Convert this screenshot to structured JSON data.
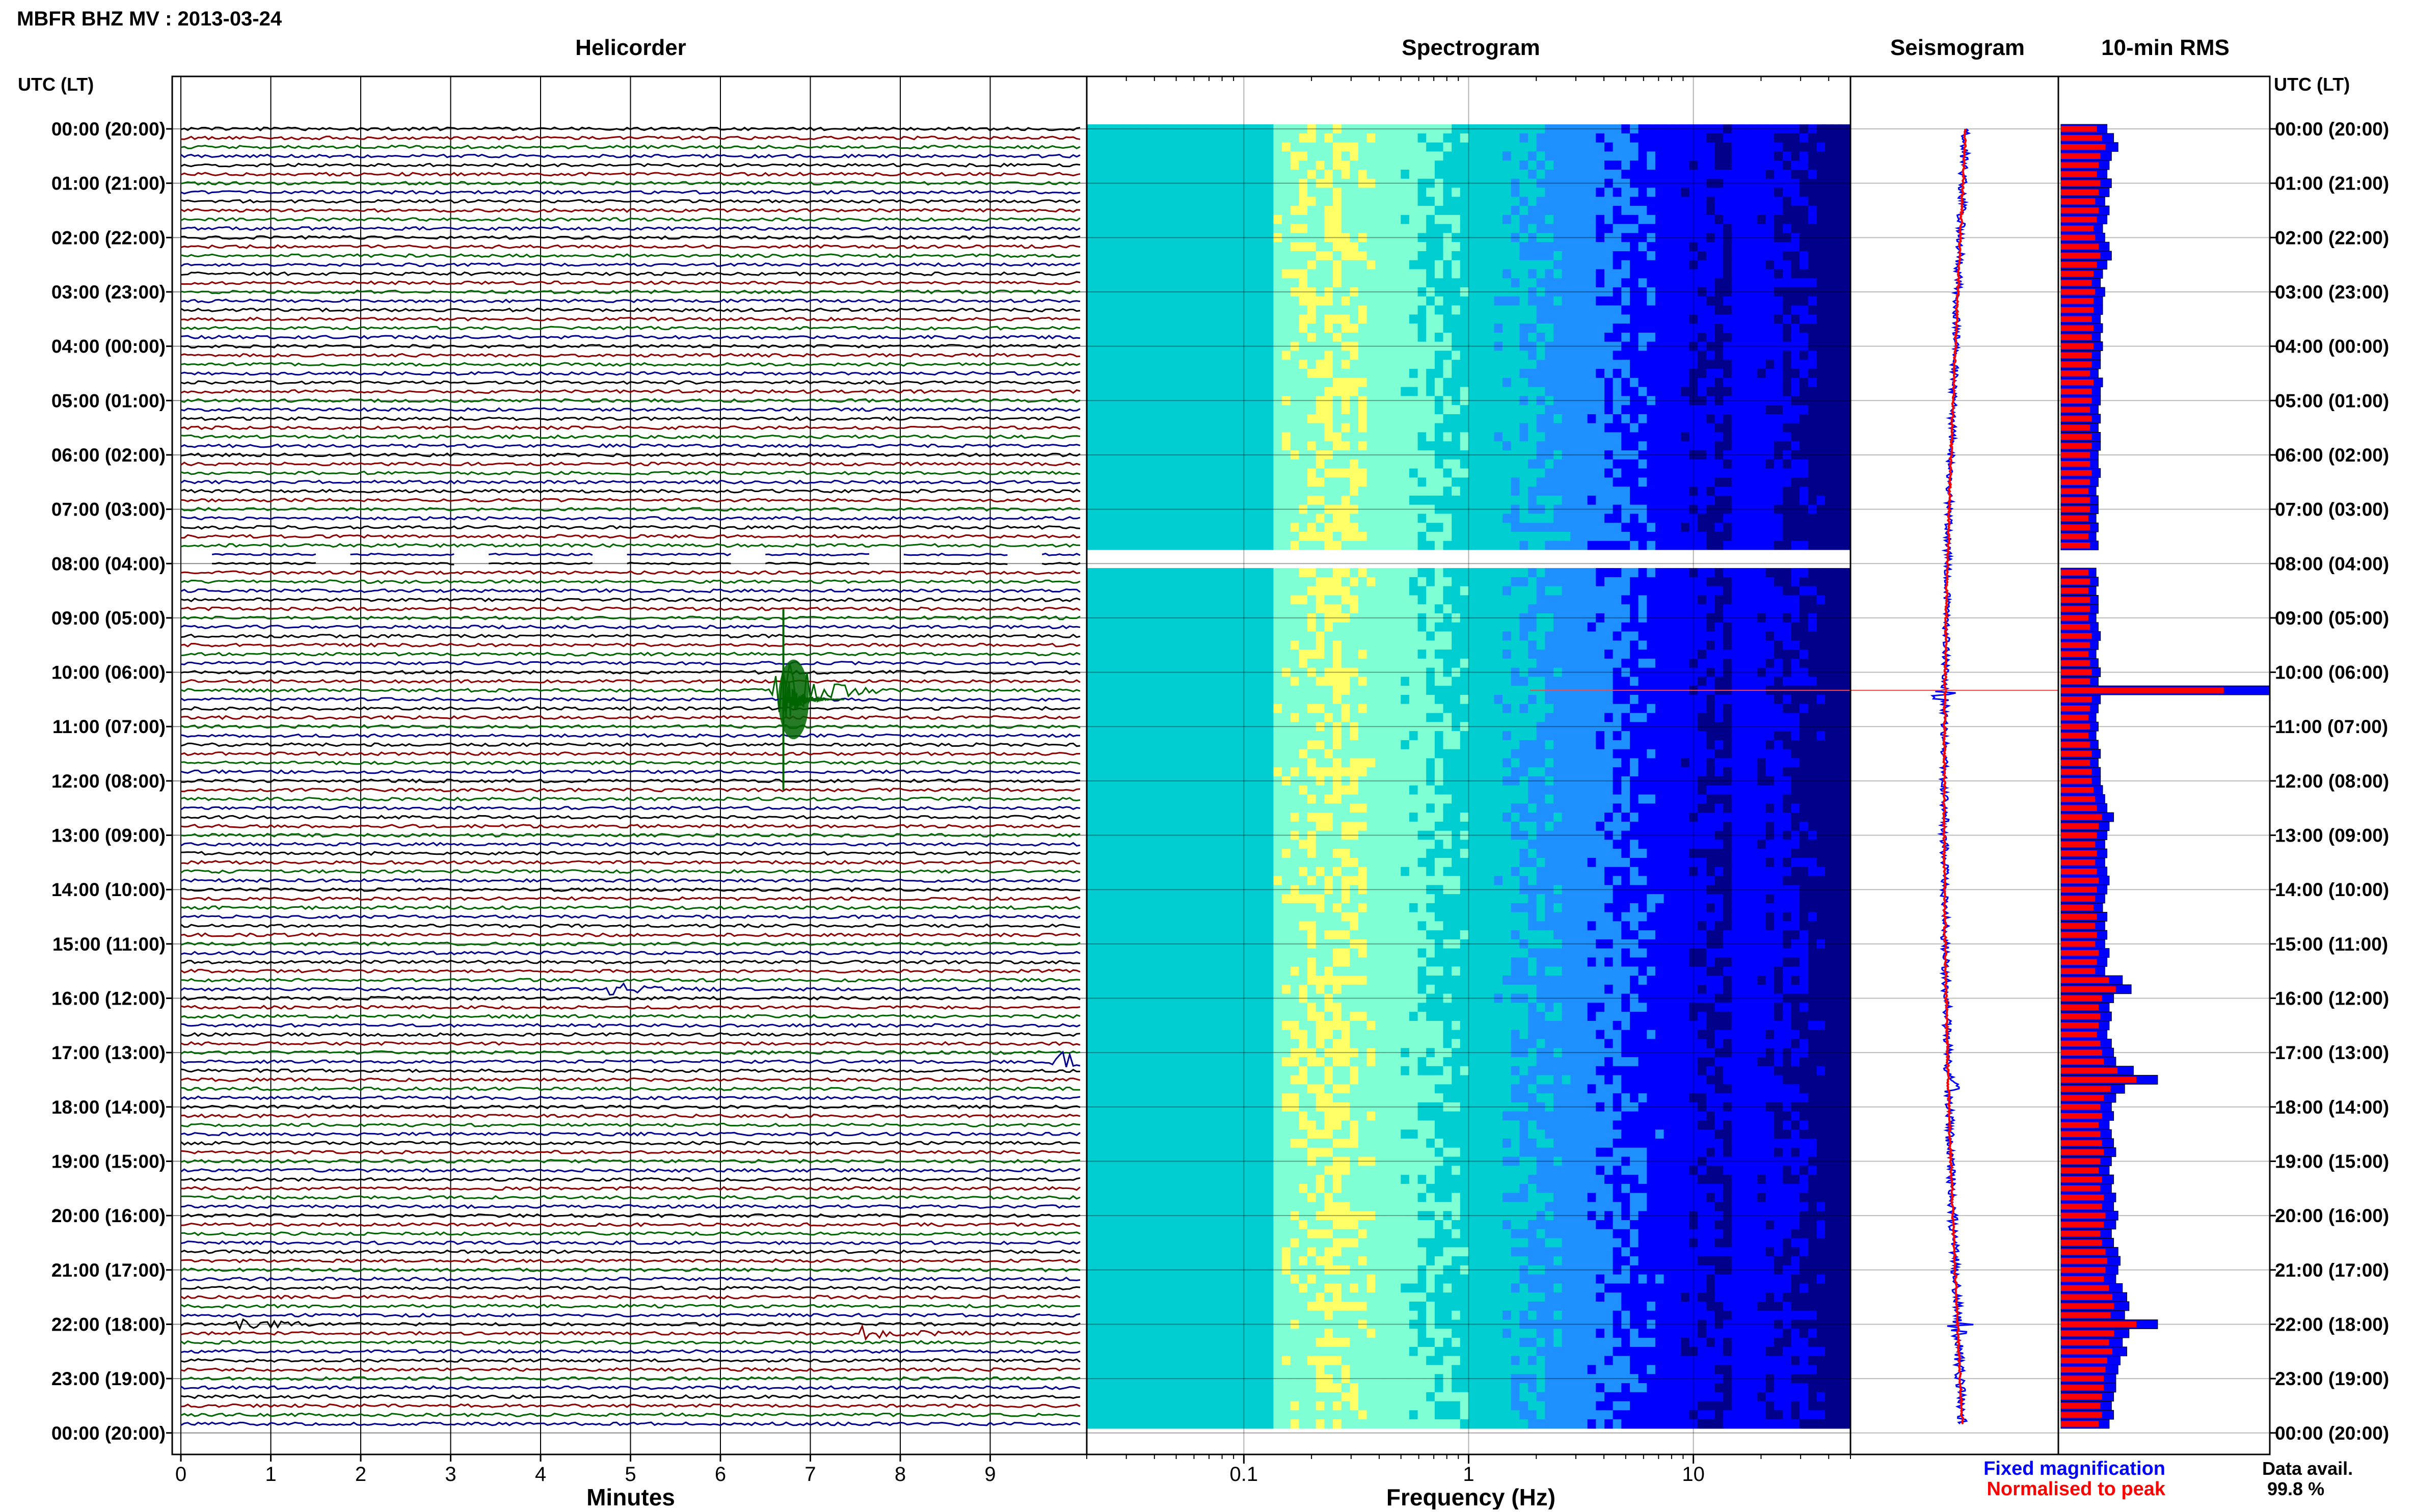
{
  "header": {
    "station_title": "MBFR BHZ MV : 2013-03-24",
    "axis_corner_left": "UTC (LT)",
    "axis_corner_right": "UTC (LT)"
  },
  "panels": {
    "helicorder": "Helicorder",
    "spectrogram": "Spectrogram",
    "seismogram": "Seismogram",
    "rms": "10-min RMS"
  },
  "footer": {
    "minutes_label": "Minutes",
    "frequency_label": "Frequency (Hz)",
    "legend_fixed": "Fixed magnification",
    "legend_normalised": "Normalised to peak",
    "data_avail_label": "Data avail.",
    "data_avail_value": "99.8 %"
  },
  "colors": {
    "trace_cycle": [
      "#000000",
      "#8b0000",
      "#006400",
      "#00008b"
    ],
    "fixed": "#0000ff",
    "normalised": "#ff0000"
  },
  "chart_data": [
    {
      "type": "line",
      "name": "helicorder",
      "x_ticks": [
        "0",
        "1",
        "2",
        "3",
        "4",
        "5",
        "6",
        "7",
        "8",
        "9"
      ],
      "xlim": [
        0,
        10
      ],
      "time_labels": [
        "00:00 (20:00)",
        "01:00 (21:00)",
        "02:00 (22:00)",
        "03:00 (23:00)",
        "04:00 (00:00)",
        "05:00 (01:00)",
        "06:00 (02:00)",
        "07:00 (03:00)",
        "08:00 (04:00)",
        "09:00 (05:00)",
        "10:00 (06:00)",
        "11:00 (07:00)",
        "12:00 (08:00)",
        "13:00 (09:00)",
        "14:00 (10:00)",
        "15:00 (11:00)",
        "16:00 (12:00)",
        "17:00 (13:00)",
        "18:00 (14:00)",
        "19:00 (15:00)",
        "20:00 (16:00)",
        "21:00 (17:00)",
        "22:00 (18:00)",
        "23:00 (19:00)",
        "00:00 (20:00)"
      ],
      "rows": 144,
      "data_gap_rows": [
        47,
        48
      ],
      "events": [
        {
          "row": 62,
          "minute": 6.7,
          "amplitude": 6.0,
          "color": 2
        },
        {
          "row": 95,
          "minute": 4.8,
          "amplitude": 1.2,
          "color": 0
        },
        {
          "row": 103,
          "minute": 9.8,
          "amplitude": 1.8,
          "color": 0
        },
        {
          "row": 133,
          "minute": 7.6,
          "amplitude": 1.2,
          "color": 0
        },
        {
          "row": 132,
          "minute": 0.7,
          "amplitude": 1.0,
          "color": 0
        }
      ]
    },
    {
      "type": "heatmap",
      "name": "spectrogram",
      "x_scale": "log",
      "xlim": [
        0.02,
        50
      ],
      "x_ticks": [
        "0.1",
        "1",
        "10"
      ],
      "colormap": [
        "#00008b",
        "#0000ff",
        "#1e90ff",
        "#00ced1",
        "#7fffd4",
        "#ffff66"
      ],
      "band_peak_hz": 0.25
    },
    {
      "type": "line",
      "name": "seismogram",
      "series": [
        {
          "name": "Fixed magnification"
        },
        {
          "name": "Normalised to peak"
        }
      ]
    },
    {
      "type": "bar",
      "name": "rms",
      "orientation": "horizontal",
      "rows": 144,
      "values": [
        2.1,
        2.4,
        2.6,
        2.3,
        2.2,
        2.1,
        2.3,
        2.2,
        2.0,
        2.2,
        2.1,
        1.9,
        2.0,
        2.2,
        2.3,
        2.1,
        1.9,
        1.8,
        2.0,
        1.9,
        1.9,
        1.8,
        1.9,
        1.8,
        1.9,
        1.8,
        1.8,
        1.7,
        1.9,
        1.8,
        1.8,
        1.7,
        1.8,
        1.7,
        1.8,
        1.8,
        1.7,
        1.7,
        1.8,
        1.7,
        1.6,
        1.7,
        1.7,
        1.6,
        1.7,
        1.6,
        1.7,
        0,
        0,
        1.6,
        1.7,
        1.6,
        1.7,
        1.7,
        1.6,
        1.7,
        1.8,
        1.7,
        1.6,
        1.7,
        1.8,
        1.7,
        9.5,
        1.8,
        1.7,
        1.6,
        1.7,
        1.6,
        1.7,
        1.8,
        1.7,
        1.8,
        1.8,
        1.9,
        2.0,
        2.1,
        2.4,
        2.2,
        2.1,
        2.0,
        2.1,
        2.0,
        2.1,
        2.2,
        2.1,
        2.0,
        1.9,
        2.1,
        2.0,
        2.1,
        2.0,
        2.2,
        2.1,
        2.0,
        2.8,
        3.2,
        2.4,
        2.2,
        2.3,
        2.2,
        2.1,
        2.3,
        2.4,
        2.5,
        3.3,
        4.4,
        2.9,
        2.5,
        2.3,
        2.4,
        2.2,
        2.3,
        2.4,
        2.5,
        2.3,
        2.2,
        2.4,
        2.3,
        2.5,
        2.4,
        2.6,
        2.5,
        2.3,
        2.4,
        2.6,
        2.7,
        2.6,
        2.5,
        2.8,
        3.0,
        3.1,
        2.9,
        4.4,
        3.1,
        2.8,
        3.0,
        2.7,
        2.6,
        2.5,
        2.5,
        2.4,
        2.3,
        2.4,
        2.2
      ],
      "normalised_ratio": 0.78
    }
  ]
}
